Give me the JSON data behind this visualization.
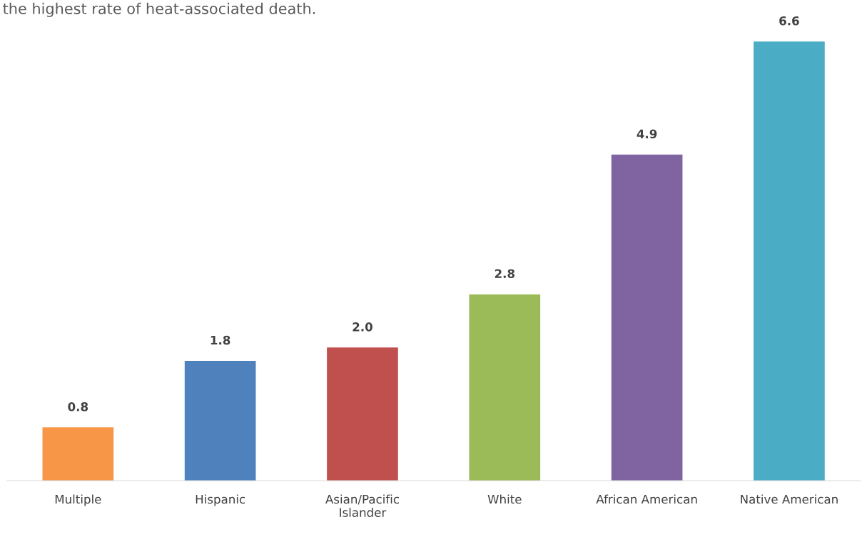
{
  "chart_data": {
    "type": "bar",
    "title": "the highest rate of heat-associated death.",
    "categories": [
      "Multiple",
      "Hispanic",
      "Asian/Pacific\nIslander",
      "White",
      "African American",
      "Native American"
    ],
    "values": [
      0.8,
      1.8,
      2.0,
      2.8,
      4.9,
      6.6
    ],
    "colors": [
      "#f79646",
      "#4f81bd",
      "#c0504d",
      "#9bbb59",
      "#8064a2",
      "#4bacc6"
    ],
    "value_labels": [
      "0.8",
      "1.8",
      "2.0",
      "2.8",
      "4.9",
      "6.6"
    ],
    "grid": false,
    "legend": false
  }
}
